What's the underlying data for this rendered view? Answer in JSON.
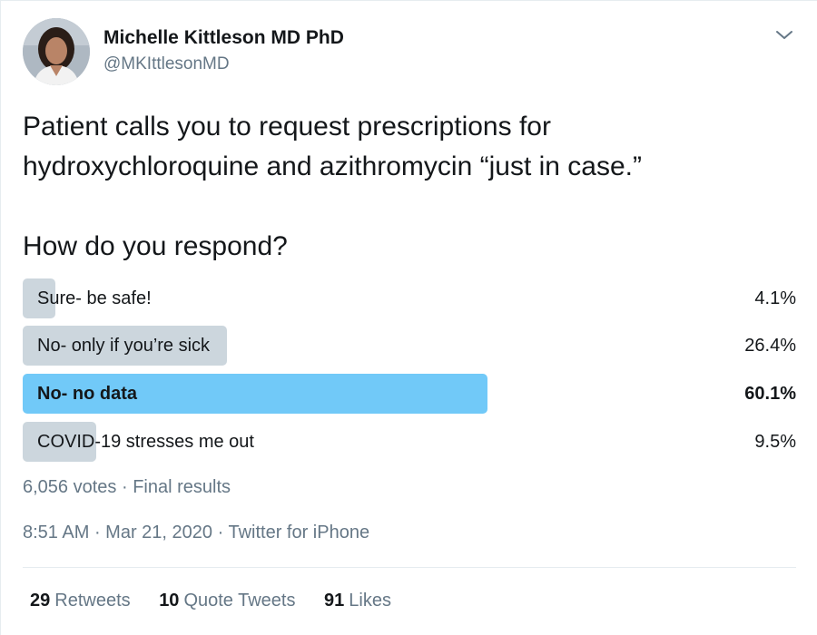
{
  "author": {
    "name": "Michelle Kittleson MD PhD",
    "handle": "@MKIttlesonMD"
  },
  "tweet": {
    "lines": [
      "Patient calls you to request prescriptions for",
      "hydroxychloroquine and azithromycin “just in case.”"
    ],
    "question": "How do you respond?"
  },
  "poll": {
    "options": [
      {
        "label": "Sure- be safe!",
        "percent_text": "4.1%",
        "percent": 4.1,
        "winner": false
      },
      {
        "label": "No- only if you’re sick",
        "percent_text": "26.4%",
        "percent": 26.4,
        "winner": false
      },
      {
        "label": "No- no data",
        "percent_text": "60.1%",
        "percent": 60.1,
        "winner": true
      },
      {
        "label": "COVID-19 stresses me out",
        "percent_text": "9.5%",
        "percent": 9.5,
        "winner": false
      }
    ],
    "votes": "6,056 votes",
    "separator": " · ",
    "status": "Final results"
  },
  "meta": {
    "time": "8:51 AM",
    "date": "Mar 21, 2020",
    "source": "Twitter for iPhone",
    "separator": " · "
  },
  "stats": {
    "retweets_count": "29",
    "retweets_label": "Retweets",
    "quotes_count": "10",
    "quotes_label": "Quote Tweets",
    "likes_count": "91",
    "likes_label": "Likes"
  },
  "colors": {
    "bar": "#ccd6dd",
    "winner_bar": "#71c9f8",
    "secondary_text": "#657786"
  },
  "icons": {
    "menu": "chevron-down-icon"
  }
}
